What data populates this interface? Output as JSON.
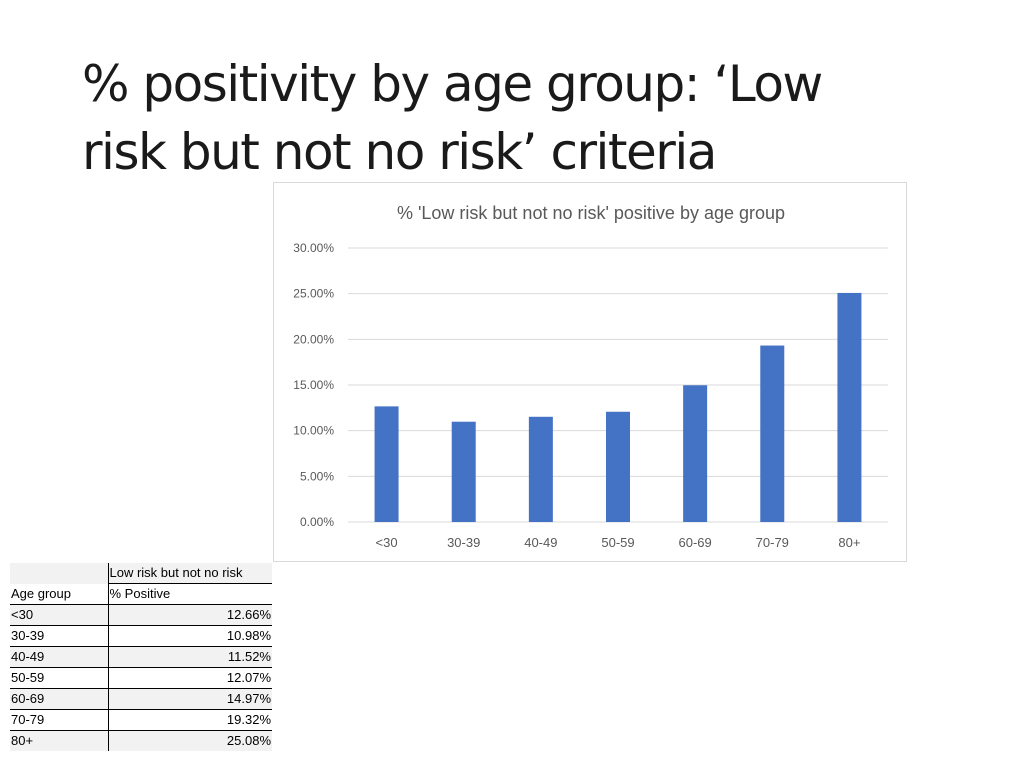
{
  "slide": {
    "title_line1": "% positivity by age group: ‘Low",
    "title_line2": "risk but not no risk’ criteria"
  },
  "chart_data": {
    "type": "bar",
    "title": "% 'Low risk but not no risk' positive by age group",
    "categories": [
      "<30",
      "30-39",
      "40-49",
      "50-59",
      "60-69",
      "70-79",
      "80+"
    ],
    "values": [
      12.66,
      10.98,
      11.52,
      12.07,
      14.97,
      19.32,
      25.08
    ],
    "ylim": [
      0,
      30
    ],
    "yticks": [
      "0.00%",
      "5.00%",
      "10.00%",
      "15.00%",
      "20.00%",
      "25.00%",
      "30.00%"
    ],
    "grid": true,
    "bar_color": "#4472C4",
    "legend": "none"
  },
  "table": {
    "header_row1": [
      "",
      "Low risk but not no risk"
    ],
    "header_row2": [
      "Age group",
      "% Positive"
    ],
    "rows": [
      [
        "<30",
        "12.66%"
      ],
      [
        "30-39",
        "10.98%"
      ],
      [
        "40-49",
        "11.52%"
      ],
      [
        "50-59",
        "12.07%"
      ],
      [
        "60-69",
        "14.97%"
      ],
      [
        "70-79",
        "19.32%"
      ],
      [
        "80+",
        "25.08%"
      ]
    ]
  }
}
